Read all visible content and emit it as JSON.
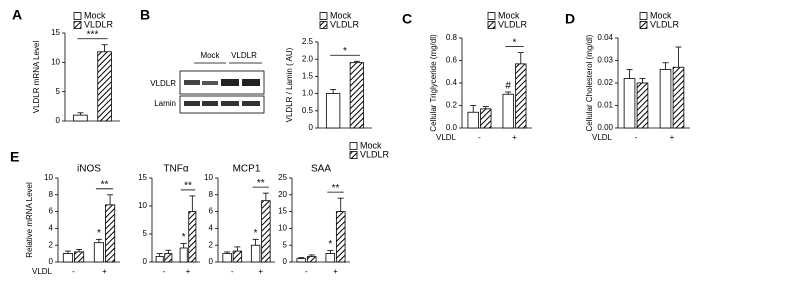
{
  "blot": {
    "columns": [
      "Mock",
      "VLDLR"
    ],
    "rows": [
      "VLDLR",
      "Lamin"
    ]
  },
  "chart_data": [
    {
      "type": "bar",
      "panel": "A",
      "ylabel": "VLDLR mRNA Level",
      "ylim": [
        0,
        15
      ],
      "yticks": [
        0,
        5,
        10,
        15
      ],
      "legend": true,
      "annotations": [
        "***"
      ],
      "series": [
        {
          "name": "Mock",
          "color": "#ffffff",
          "values": [
            1.0
          ],
          "errors": [
            0.4
          ]
        },
        {
          "name": "VLDLR",
          "color": "hatch",
          "values": [
            11.8
          ],
          "errors": [
            1.2
          ]
        }
      ]
    },
    {
      "type": "bar",
      "panel": "B",
      "ylabel": "VLDLR / Lamin ( AU)",
      "ylim": [
        0,
        2.5
      ],
      "yticks": [
        0,
        0.5,
        {
          "value": 1,
          "label": "1.0"
        },
        1.5,
        {
          "value": 2,
          "label": "2.0"
        },
        2.5
      ],
      "legend": true,
      "annotations": [
        "*"
      ],
      "series": [
        {
          "name": "Mock",
          "color": "#ffffff",
          "values": [
            1.0
          ],
          "errors": [
            0.12
          ]
        },
        {
          "name": "VLDLR",
          "color": "hatch",
          "values": [
            1.9
          ],
          "errors": [
            0.04
          ]
        }
      ]
    },
    {
      "type": "bar",
      "panel": "C",
      "ylabel": "Cellular Triglyceride (mg/dl)",
      "xlabel": "VLDL",
      "categories": [
        "-",
        "+"
      ],
      "ylim": [
        0,
        0.8
      ],
      "yticks": [
        {
          "value": 0,
          "label": "0.0"
        },
        0.2,
        0.4,
        0.6,
        0.8
      ],
      "legend": true,
      "annotations": [
        "#",
        "*"
      ],
      "series": [
        {
          "name": "Mock",
          "color": "#ffffff",
          "values": [
            0.14,
            0.3
          ],
          "errors": [
            0.06,
            0.02
          ]
        },
        {
          "name": "VLDLR",
          "color": "hatch",
          "values": [
            0.17,
            0.57
          ],
          "errors": [
            0.02,
            0.1
          ]
        }
      ]
    },
    {
      "type": "bar",
      "panel": "D",
      "ylabel": "Cellular Cholesterol (mg/dl)",
      "xlabel": "VLDL",
      "categories": [
        "-",
        "+"
      ],
      "ylim": [
        0,
        0.04
      ],
      "yticks": [
        {
          "value": 0,
          "label": "0.00"
        },
        0.01,
        0.02,
        0.03,
        0.04
      ],
      "legend": true,
      "annotations": [],
      "series": [
        {
          "name": "Mock",
          "color": "#ffffff",
          "values": [
            0.022,
            0.026
          ],
          "errors": [
            0.004,
            0.003
          ]
        },
        {
          "name": "VLDLR",
          "color": "hatch",
          "values": [
            0.02,
            0.027
          ],
          "errors": [
            0.002,
            0.009
          ]
        }
      ]
    },
    {
      "type": "bar",
      "panel": "E",
      "title": "iNOS",
      "ylabel": "Relative mRNA Level",
      "xlabel": "VLDL",
      "categories": [
        "-",
        "+"
      ],
      "ylim": [
        0,
        10
      ],
      "yticks": [
        0,
        2,
        4,
        6,
        8,
        10
      ],
      "annotations": [
        "*",
        "**"
      ],
      "series": [
        {
          "name": "Mock",
          "color": "#ffffff",
          "values": [
            1.0,
            2.3
          ],
          "errors": [
            0.3,
            0.4
          ]
        },
        {
          "name": "VLDLR",
          "color": "hatch",
          "values": [
            1.2,
            6.8
          ],
          "errors": [
            0.3,
            1.2
          ]
        }
      ]
    },
    {
      "type": "bar",
      "title": "TNFα",
      "categories": [
        "-",
        "+"
      ],
      "ylim": [
        0,
        15
      ],
      "yticks": [
        0,
        5,
        10,
        15
      ],
      "annotations": [
        "*",
        "**"
      ],
      "series": [
        {
          "name": "Mock",
          "color": "#ffffff",
          "values": [
            1.0,
            2.5
          ],
          "errors": [
            0.5,
            0.8
          ]
        },
        {
          "name": "VLDLR",
          "color": "hatch",
          "values": [
            1.5,
            9.0
          ],
          "errors": [
            0.6,
            2.8
          ]
        }
      ]
    },
    {
      "type": "bar",
      "title": "MCP1",
      "categories": [
        "-",
        "+"
      ],
      "ylim": [
        0,
        10
      ],
      "yticks": [
        0,
        2,
        4,
        6,
        8,
        10
      ],
      "annotations": [
        "*",
        "**"
      ],
      "series": [
        {
          "name": "Mock",
          "color": "#ffffff",
          "values": [
            1.0,
            2.0
          ],
          "errors": [
            0.2,
            0.7
          ]
        },
        {
          "name": "VLDLR",
          "color": "hatch",
          "values": [
            1.3,
            7.3
          ],
          "errors": [
            0.5,
            0.9
          ]
        }
      ]
    },
    {
      "type": "bar",
      "title": "SAA",
      "categories": [
        "-",
        "+"
      ],
      "ylim": [
        0,
        25
      ],
      "yticks": [
        0,
        5,
        10,
        15,
        20,
        25
      ],
      "legend": true,
      "annotations": [
        "*",
        "**"
      ],
      "series": [
        {
          "name": "Mock",
          "color": "#ffffff",
          "values": [
            1.0,
            2.5
          ],
          "errors": [
            0.3,
            0.9
          ]
        },
        {
          "name": "VLDLR",
          "color": "hatch",
          "values": [
            1.6,
            15
          ],
          "errors": [
            0.5,
            4
          ]
        }
      ]
    }
  ]
}
